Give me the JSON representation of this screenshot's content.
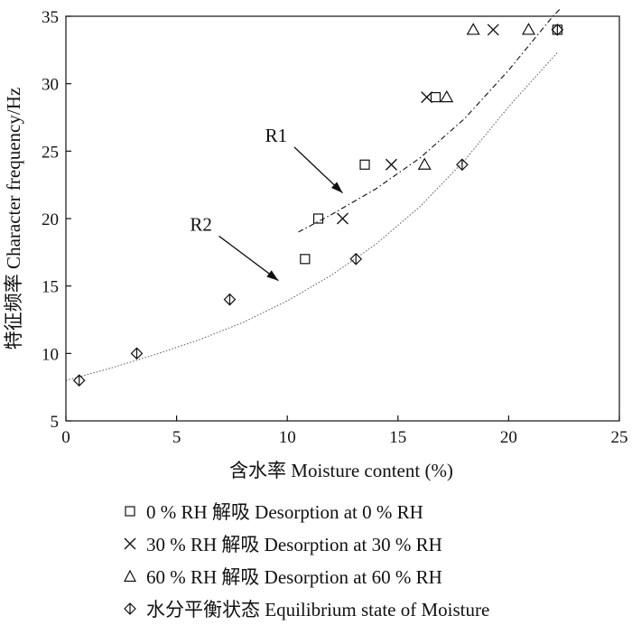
{
  "chart_data": {
    "type": "scatter",
    "title": "",
    "xlabel": "含水率 Moisture content (%)",
    "ylabel": "特征频率 Character frequency/Hz",
    "xlim": [
      0,
      25
    ],
    "ylim": [
      5,
      35
    ],
    "xticks": [
      0,
      5,
      10,
      15,
      20,
      25
    ],
    "yticks": [
      5,
      10,
      15,
      20,
      25,
      30,
      35
    ],
    "grid": false,
    "legend_position": "bottom",
    "series": [
      {
        "name": "0 % RH 解吸 Desorption at 0 % RH",
        "marker": "square",
        "points": [
          [
            10.8,
            17
          ],
          [
            11.4,
            20
          ],
          [
            13.5,
            24
          ],
          [
            16.7,
            29
          ],
          [
            22.2,
            34
          ]
        ]
      },
      {
        "name": "30 % RH 解吸 Desorption at 30 % RH",
        "marker": "x",
        "points": [
          [
            12.5,
            20
          ],
          [
            14.7,
            24
          ],
          [
            16.3,
            29
          ],
          [
            19.3,
            34
          ]
        ]
      },
      {
        "name": "60 % RH 解吸 Desorption at 60 % RH",
        "marker": "triangle",
        "points": [
          [
            16.2,
            24
          ],
          [
            17.2,
            29
          ],
          [
            18.4,
            34
          ],
          [
            20.9,
            34
          ]
        ]
      },
      {
        "name": "水分平衡状态 Equilibrium state of Moisture",
        "marker": "diamond",
        "points": [
          [
            0.6,
            8
          ],
          [
            3.2,
            10
          ],
          [
            7.4,
            14
          ],
          [
            13.1,
            17
          ],
          [
            17.9,
            24
          ],
          [
            22.2,
            34
          ]
        ]
      }
    ],
    "fit_curves": [
      {
        "label": "R1",
        "style": "dashdot",
        "points": [
          [
            10.5,
            19.0
          ],
          [
            12,
            20.3
          ],
          [
            14,
            22.2
          ],
          [
            16,
            24.5
          ],
          [
            18,
            27.4
          ],
          [
            20,
            31.0
          ],
          [
            22,
            35.0
          ],
          [
            22.3,
            35.5
          ]
        ]
      },
      {
        "label": "R2",
        "style": "dotted",
        "points": [
          [
            0,
            8.0
          ],
          [
            2,
            8.9
          ],
          [
            4,
            9.9
          ],
          [
            6,
            11.0
          ],
          [
            8,
            12.3
          ],
          [
            10,
            13.9
          ],
          [
            12,
            15.8
          ],
          [
            14,
            18.1
          ],
          [
            16,
            20.9
          ],
          [
            18,
            24.3
          ],
          [
            20,
            28.3
          ],
          [
            22.2,
            32.3
          ]
        ]
      }
    ],
    "annotations": [
      {
        "text": "R1",
        "x": 9.5,
        "y": 25.7,
        "arrow_to": [
          12.5,
          21.9
        ]
      },
      {
        "text": "R2",
        "x": 6.1,
        "y": 19.1,
        "arrow_to": [
          9.6,
          15.4
        ]
      }
    ]
  }
}
